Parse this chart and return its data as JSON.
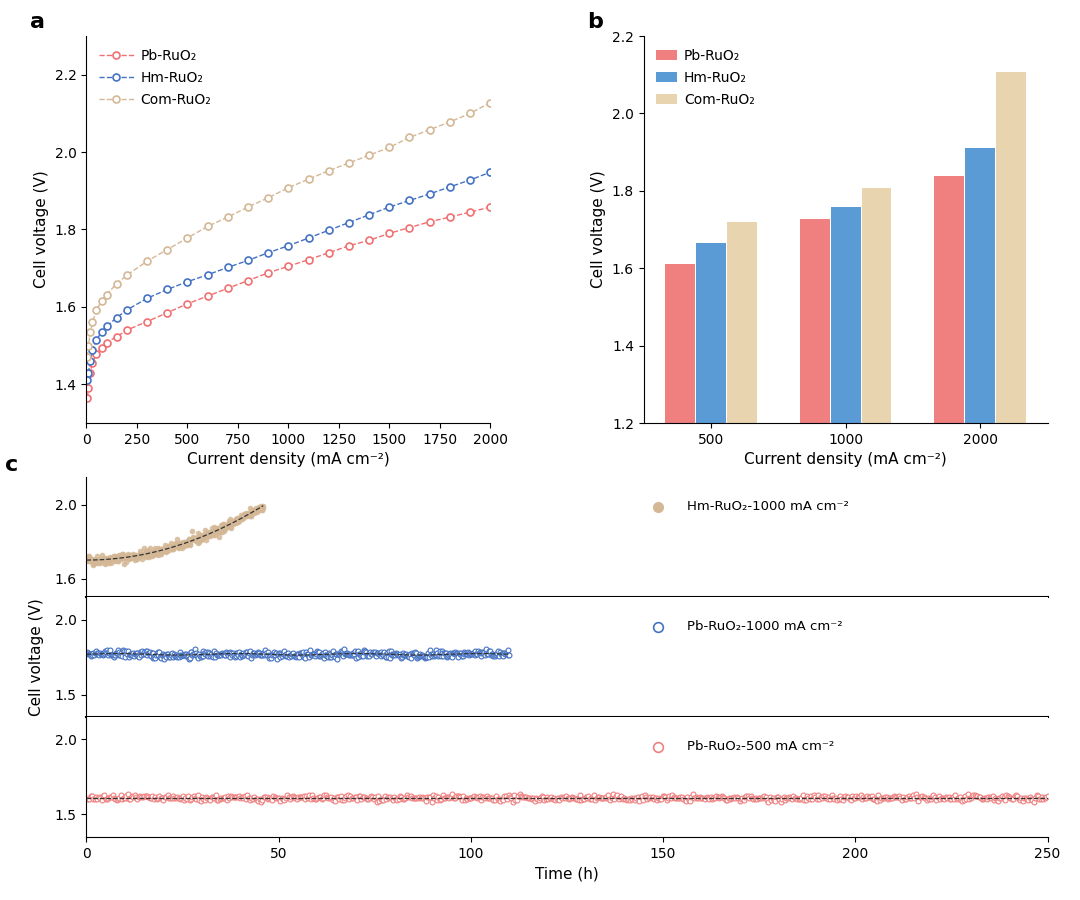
{
  "panel_a": {
    "xlabel": "Current density (mA cm⁻²)",
    "ylabel": "Cell voltage (V)",
    "ylim": [
      1.3,
      2.3
    ],
    "xlim": [
      0,
      2000
    ],
    "series": {
      "Pb-RuO₂": {
        "color": "#f07070",
        "x": [
          5,
          10,
          20,
          30,
          50,
          75,
          100,
          150,
          200,
          300,
          400,
          500,
          600,
          700,
          800,
          900,
          1000,
          1100,
          1200,
          1300,
          1400,
          1500,
          1600,
          1700,
          1800,
          1900,
          2000
        ],
        "y": [
          1.365,
          1.39,
          1.43,
          1.455,
          1.478,
          1.495,
          1.508,
          1.523,
          1.54,
          1.562,
          1.585,
          1.608,
          1.628,
          1.648,
          1.668,
          1.688,
          1.705,
          1.722,
          1.74,
          1.758,
          1.772,
          1.79,
          1.805,
          1.82,
          1.832,
          1.845,
          1.858
        ]
      },
      "Hm-RuO₂": {
        "color": "#4472c4",
        "x": [
          5,
          10,
          20,
          30,
          50,
          75,
          100,
          150,
          200,
          300,
          400,
          500,
          600,
          700,
          800,
          900,
          1000,
          1100,
          1200,
          1300,
          1400,
          1500,
          1600,
          1700,
          1800,
          1900,
          2000
        ],
        "y": [
          1.41,
          1.43,
          1.46,
          1.488,
          1.515,
          1.535,
          1.55,
          1.572,
          1.592,
          1.622,
          1.645,
          1.665,
          1.683,
          1.702,
          1.72,
          1.74,
          1.758,
          1.778,
          1.798,
          1.818,
          1.838,
          1.858,
          1.875,
          1.892,
          1.91,
          1.928,
          1.948
        ]
      },
      "Com-RuO₂": {
        "color": "#d4b896",
        "x": [
          5,
          10,
          20,
          30,
          50,
          75,
          100,
          150,
          200,
          300,
          400,
          500,
          600,
          700,
          800,
          900,
          1000,
          1100,
          1200,
          1300,
          1400,
          1500,
          1600,
          1700,
          1800,
          1900,
          2000
        ],
        "y": [
          1.47,
          1.5,
          1.535,
          1.56,
          1.592,
          1.615,
          1.632,
          1.66,
          1.682,
          1.718,
          1.748,
          1.778,
          1.808,
          1.832,
          1.858,
          1.882,
          1.908,
          1.93,
          1.952,
          1.972,
          1.992,
          2.012,
          2.038,
          2.058,
          2.078,
          2.1,
          2.128
        ]
      }
    }
  },
  "panel_b": {
    "xlabel": "Current density (mA cm⁻²)",
    "ylabel": "Cell voltage (V)",
    "ylim": [
      1.2,
      2.2
    ],
    "yticks": [
      1.2,
      1.4,
      1.6,
      1.8,
      2.0,
      2.2
    ],
    "categories": [
      "500",
      "1000",
      "2000"
    ],
    "series": {
      "Pb-RuO₂": {
        "color": "#f08080",
        "values": [
          1.61,
          1.728,
          1.838
        ]
      },
      "Hm-RuO₂": {
        "color": "#5b9bd5",
        "values": [
          1.665,
          1.758,
          1.91
        ]
      },
      "Com-RuO₂": {
        "color": "#e8d5b0",
        "values": [
          1.72,
          1.808,
          2.108
        ]
      }
    }
  },
  "panel_c": {
    "xlabel": "Time (h)",
    "ylabel": "Cell voltage (V)",
    "xlim": [
      0,
      250
    ],
    "xticks": [
      0,
      50,
      100,
      150,
      200,
      250
    ],
    "series": {
      "Hm-RuO₂-1000 mA cm⁻²": {
        "color": "#d4b896",
        "ylim": [
          1.5,
          2.15
        ],
        "yticks": [
          1.6,
          2.0
        ],
        "x_end": 46,
        "y_start": 1.7,
        "y_end": 1.995
      },
      "Pb-RuO₂-1000 mA cm⁻²": {
        "color": "#4472c4",
        "ylim": [
          1.35,
          2.15
        ],
        "yticks": [
          1.5,
          2.0
        ],
        "x_end": 110,
        "y_mean": 1.768
      },
      "Pb-RuO₂-500 mA cm⁻²": {
        "color": "#f08080",
        "ylim": [
          1.35,
          2.15
        ],
        "yticks": [
          1.5,
          2.0
        ],
        "x_end": 250,
        "y_mean": 1.61
      }
    }
  }
}
